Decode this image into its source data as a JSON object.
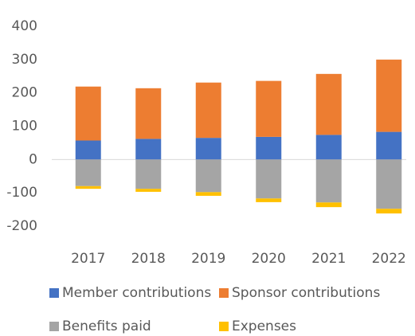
{
  "chart_data": {
    "type": "stacked_bar",
    "categories": [
      "2017",
      "2018",
      "2019",
      "2020",
      "2021",
      "2022"
    ],
    "series": [
      {
        "name": "Member contributions",
        "color": "#4472c4",
        "values": [
          57,
          62,
          65,
          68,
          74,
          83
        ]
      },
      {
        "name": "Sponsor contributions",
        "color": "#ed7d31",
        "values": [
          162,
          152,
          166,
          168,
          183,
          217
        ]
      },
      {
        "name": "Benefits paid",
        "color": "#a5a5a5",
        "values": [
          -80,
          -88,
          -98,
          -117,
          -129,
          -148
        ]
      },
      {
        "name": "Expenses",
        "color": "#ffc000",
        "values": [
          -8,
          -9,
          -11,
          -11,
          -14,
          -14
        ]
      }
    ],
    "ylim": [
      -200,
      400
    ],
    "yticks": [
      -200,
      -100,
      0,
      100,
      200,
      300,
      400
    ],
    "grid": false
  }
}
